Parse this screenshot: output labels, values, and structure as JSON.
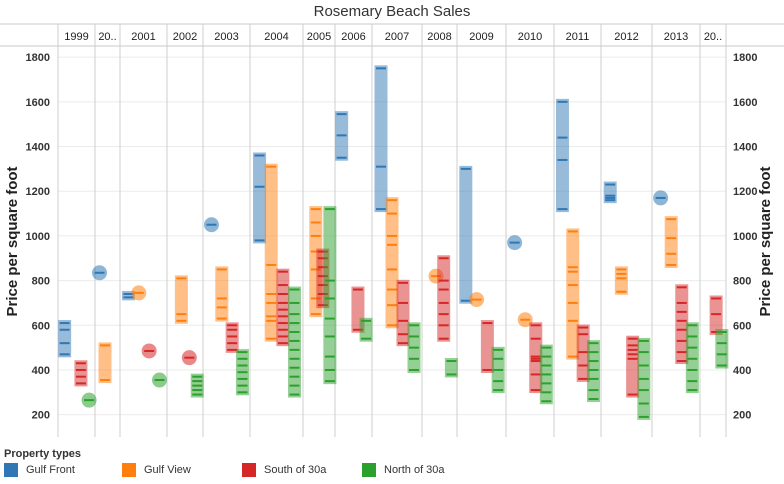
{
  "chart_data": {
    "type": "scatter",
    "title": "Rosemary Beach Sales",
    "ylabel": "Price per square foot",
    "ylabel_right": "Price per square foot",
    "ylim": [
      100,
      1850
    ],
    "yticks": [
      200,
      400,
      600,
      800,
      1000,
      1200,
      1400,
      1600,
      1800
    ],
    "columns": [
      "1999",
      "20..",
      "2001",
      "2002",
      "2003",
      "2004",
      "2005",
      "2006",
      "2007",
      "2008",
      "2009",
      "2010",
      "2011",
      "2012",
      "2013",
      "20.."
    ],
    "colors": {
      "Gulf Front": "#2f78b4",
      "Gulf View": "#ff7f0e",
      "South of 30a": "#d62728",
      "North of 30a": "#2ca02c"
    },
    "series": [
      {
        "name": "Gulf Front",
        "points": [
          {
            "year": "1999",
            "values": [
              470,
              520,
              580,
              610
            ]
          },
          {
            "year": "20..",
            "values": [
              835
            ]
          },
          {
            "year": "2001",
            "values": [
              725,
              740
            ]
          },
          {
            "year": "2003",
            "values": [
              1050
            ]
          },
          {
            "year": "2004",
            "values": [
              980,
              1220,
              1360
            ]
          },
          {
            "year": "2006",
            "values": [
              1350,
              1450,
              1545
            ]
          },
          {
            "year": "2007",
            "values": [
              1120,
              1310,
              1750
            ]
          },
          {
            "year": "2009",
            "values": [
              710,
              1300
            ]
          },
          {
            "year": "2010",
            "values": [
              970
            ]
          },
          {
            "year": "2011",
            "values": [
              1120,
              1340,
              1440,
              1600
            ]
          },
          {
            "year": "2012",
            "values": [
              1160,
              1170,
              1180,
              1230
            ]
          },
          {
            "year": "2013",
            "values": [
              1170
            ]
          }
        ]
      },
      {
        "name": "Gulf View",
        "points": [
          {
            "year": "20..",
            "values": [
              355,
              510
            ]
          },
          {
            "year": "2001",
            "values": [
              745
            ]
          },
          {
            "year": "2002",
            "values": [
              620,
              650,
              810
            ]
          },
          {
            "year": "2003",
            "values": [
              630,
              680,
              720,
              850
            ]
          },
          {
            "year": "2004",
            "values": [
              540,
              620,
              640,
              700,
              740,
              870,
              1310
            ]
          },
          {
            "year": "2005",
            "values": [
              650,
              720,
              850,
              930,
              1000,
              1060,
              1120
            ]
          },
          {
            "year": "2007",
            "values": [
              600,
              690,
              760,
              850,
              960,
              1000,
              1100,
              1160
            ]
          },
          {
            "year": "2008",
            "values": [
              820
            ]
          },
          {
            "year": "2009",
            "values": [
              715
            ]
          },
          {
            "year": "2010",
            "values": [
              625
            ]
          },
          {
            "year": "2011",
            "values": [
              460,
              620,
              700,
              780,
              840,
              860,
              1020
            ]
          },
          {
            "year": "2012",
            "values": [
              750,
              810,
              830,
              850
            ]
          },
          {
            "year": "2013",
            "values": [
              870,
              920,
              990,
              1075
            ]
          }
        ]
      },
      {
        "name": "South of 30a",
        "points": [
          {
            "year": "1999",
            "values": [
              340,
              370,
              400,
              430
            ]
          },
          {
            "year": "2001",
            "values": [
              485
            ]
          },
          {
            "year": "2002",
            "values": [
              455
            ]
          },
          {
            "year": "2003",
            "values": [
              490,
              520,
              550,
              580,
              600
            ]
          },
          {
            "year": "2004",
            "values": [
              520,
              550,
              580,
              610,
              640,
              670,
              700,
              740,
              780,
              840
            ]
          },
          {
            "year": "2005",
            "values": [
              690,
              740,
              780,
              820,
              860,
              900,
              930
            ]
          },
          {
            "year": "2006",
            "values": [
              580,
              760
            ]
          },
          {
            "year": "2007",
            "values": [
              520,
              560,
              620,
              700,
              790
            ]
          },
          {
            "year": "2008",
            "values": [
              540,
              600,
              650,
              700,
              760,
              800,
              900
            ]
          },
          {
            "year": "2009",
            "values": [
              400,
              610
            ]
          },
          {
            "year": "2010",
            "values": [
              310,
              380,
              440,
              450,
              460,
              540,
              600
            ]
          },
          {
            "year": "2011",
            "values": [
              360,
              420,
              480,
              560,
              590
            ]
          },
          {
            "year": "2012",
            "values": [
              290,
              450,
              470,
              490,
              510,
              540
            ]
          },
          {
            "year": "2013",
            "values": [
              440,
              480,
              530,
              580,
              620,
              660,
              700,
              770
            ]
          },
          {
            "year": "20..",
            "values": [
              570,
              650,
              720
            ]
          }
        ]
      },
      {
        "name": "North of 30a",
        "points": [
          {
            "year": "1999",
            "values": [
              265
            ]
          },
          {
            "year": "2001",
            "values": [
              355
            ]
          },
          {
            "year": "2002",
            "values": [
              290,
              310,
              330,
              350,
              370
            ]
          },
          {
            "year": "2003",
            "values": [
              300,
              330,
              360,
              390,
              420,
              450,
              480
            ]
          },
          {
            "year": "2004",
            "values": [
              290,
              330,
              370,
              410,
              450,
              490,
              530,
              570,
              610,
              650,
              700,
              760
            ]
          },
          {
            "year": "2005",
            "values": [
              350,
              400,
              460,
              550,
              630,
              720,
              800,
              1120
            ]
          },
          {
            "year": "2006",
            "values": [
              540,
              620
            ]
          },
          {
            "year": "2007",
            "values": [
              400,
              450,
              500,
              550,
              600
            ]
          },
          {
            "year": "2008",
            "values": [
              380,
              440
            ]
          },
          {
            "year": "2009",
            "values": [
              310,
              350,
              400,
              450,
              490
            ]
          },
          {
            "year": "2010",
            "values": [
              260,
              300,
              340,
              380,
              420,
              460,
              500
            ]
          },
          {
            "year": "2011",
            "values": [
              270,
              310,
              360,
              400,
              440,
              480,
              520
            ]
          },
          {
            "year": "2012",
            "values": [
              190,
              250,
              310,
              360,
              420,
              480,
              530
            ]
          },
          {
            "year": "2013",
            "values": [
              310,
              350,
              400,
              450,
              500,
              550,
              600
            ]
          },
          {
            "year": "20..",
            "values": [
              420,
              470,
              520,
              570
            ]
          }
        ]
      }
    ]
  },
  "legend": {
    "title": "Property types",
    "items": [
      {
        "label": "Gulf Front",
        "color": "#2f78b4"
      },
      {
        "label": "Gulf View",
        "color": "#ff7f0e"
      },
      {
        "label": "South of 30a",
        "color": "#d62728"
      },
      {
        "label": "North of 30a",
        "color": "#2ca02c"
      }
    ]
  }
}
